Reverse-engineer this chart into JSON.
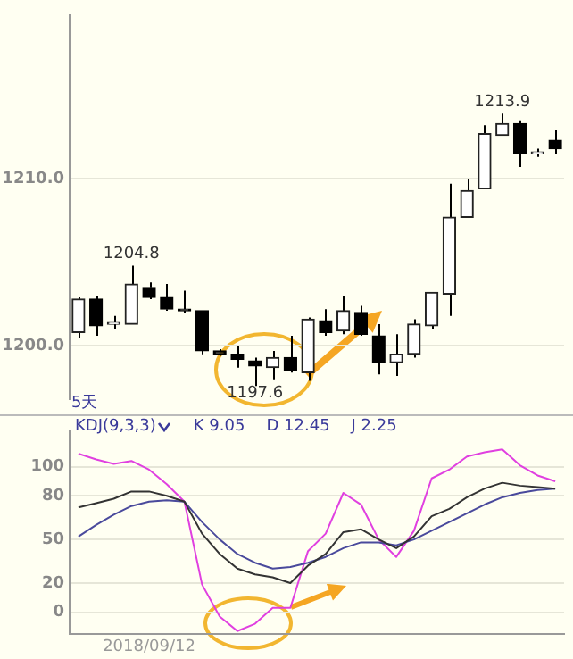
{
  "chart_data": [
    {
      "type": "candlestick",
      "categories": [
        null,
        null,
        null,
        null,
        null,
        null,
        null,
        null,
        null,
        null,
        null,
        null,
        null,
        null,
        null,
        null,
        null,
        null,
        null,
        null,
        null,
        null,
        null,
        null,
        null,
        null,
        null,
        null
      ],
      "ohlc": [
        [
          1200.8,
          1202.9,
          1200.5,
          1202.8
        ],
        [
          1202.8,
          1203.0,
          1200.6,
          1201.2
        ],
        [
          1201.3,
          1201.8,
          1201.0,
          1201.4
        ],
        [
          1201.3,
          1204.8,
          1201.3,
          1203.7
        ],
        [
          1203.5,
          1203.8,
          1202.8,
          1202.9
        ],
        [
          1202.9,
          1203.7,
          1202.1,
          1202.2
        ],
        [
          1202.2,
          1203.3,
          1202.0,
          1202.1
        ],
        [
          1202.1,
          1202.1,
          1199.5,
          1199.7
        ],
        [
          1199.7,
          1199.8,
          1199.4,
          1199.5
        ],
        [
          1199.5,
          1200.0,
          1198.7,
          1199.2
        ],
        [
          1199.1,
          1199.3,
          1197.6,
          1198.8
        ],
        [
          1198.7,
          1199.7,
          1198.0,
          1199.3
        ],
        [
          1199.3,
          1200.6,
          1198.4,
          1198.5
        ],
        [
          1198.4,
          1201.7,
          1197.9,
          1201.6
        ],
        [
          1201.5,
          1202.2,
          1200.6,
          1200.8
        ],
        [
          1200.9,
          1203.0,
          1200.7,
          1202.1
        ],
        [
          1202.0,
          1202.4,
          1200.6,
          1200.7
        ],
        [
          1200.6,
          1201.3,
          1198.3,
          1199.0
        ],
        [
          1199.0,
          1200.7,
          1198.2,
          1199.5
        ],
        [
          1199.5,
          1201.6,
          1199.3,
          1201.3
        ],
        [
          1201.2,
          1203.2,
          1201.0,
          1203.2
        ],
        [
          1203.1,
          1209.7,
          1201.8,
          1207.7
        ],
        [
          1207.7,
          1210.0,
          1207.7,
          1209.3
        ],
        [
          1209.4,
          1213.2,
          1209.4,
          1212.7
        ],
        [
          1212.6,
          1213.9,
          1212.6,
          1213.3
        ],
        [
          1213.3,
          1213.5,
          1210.7,
          1211.5
        ],
        [
          1211.5,
          1211.8,
          1211.3,
          1211.6
        ],
        [
          1212.3,
          1212.9,
          1211.5,
          1211.8
        ]
      ],
      "colors": [
        "#222222",
        "#000000",
        "#222222",
        "#222222",
        "#000000",
        "#000000",
        "#000000",
        "#000000",
        "#000000",
        "#000000",
        "#000000",
        "#222222",
        "#000000",
        "#222222",
        "#000000",
        "#222222",
        "#000000",
        "#000000",
        "#222222",
        "#222222",
        "#222222",
        "#222222",
        "#222222",
        "#222222",
        "#222222",
        "#000000",
        "#222222",
        "#000000"
      ],
      "ylim": [
        1196.8,
        1219.8
      ],
      "yticks": [
        {
          "value": 1200,
          "label": "1200.0"
        },
        {
          "value": 1210,
          "label": "1210.0"
        }
      ],
      "grid": "y",
      "tick_labels": "y",
      "annotations": [
        {
          "text": "1204.8",
          "y": 1204.8
        },
        {
          "text": "1197.6",
          "y": 1197.6
        },
        {
          "text": "1213.9",
          "y": 1213.9
        },
        "5天"
      ]
    },
    {
      "type": "line",
      "categories": [
        null,
        null,
        null,
        null,
        "2018/09/12",
        null,
        null,
        null,
        null,
        null,
        null,
        null,
        null,
        null,
        null,
        null,
        null,
        null,
        null,
        null,
        null,
        null,
        null,
        null,
        null,
        null,
        null,
        null
      ],
      "series": [
        {
          "color": "#333333",
          "values": [
            72,
            75,
            78,
            83,
            83,
            80,
            76,
            54,
            40,
            30,
            26,
            24,
            20,
            32,
            40,
            55,
            57,
            50,
            44,
            52,
            66,
            71,
            79,
            85,
            89,
            87,
            86,
            85
          ]
        },
        {
          "color": "#4a4a9c",
          "values": [
            52,
            60,
            67,
            73,
            76,
            77,
            76,
            62,
            50,
            40,
            34,
            30,
            31,
            34,
            38,
            44,
            48,
            48,
            46,
            50,
            56,
            62,
            68,
            74,
            79,
            82,
            84,
            85
          ]
        },
        {
          "color": "#e040e0",
          "values": [
            109,
            105,
            102,
            104,
            98,
            88,
            76,
            19,
            -3,
            -13,
            -8,
            3,
            3,
            42,
            54,
            82,
            74,
            50,
            38,
            56,
            92,
            98,
            107,
            110,
            112,
            101,
            94,
            90
          ]
        }
      ],
      "ylim": [
        -15,
        124.5
      ],
      "yticks": [
        0,
        20,
        50,
        80,
        100
      ],
      "grid": "y",
      "marker": "none",
      "annotations": [
        "KDJ(9,3,3)",
        "K 9.05",
        "D 12.45",
        "J 2.25"
      ]
    }
  ]
}
